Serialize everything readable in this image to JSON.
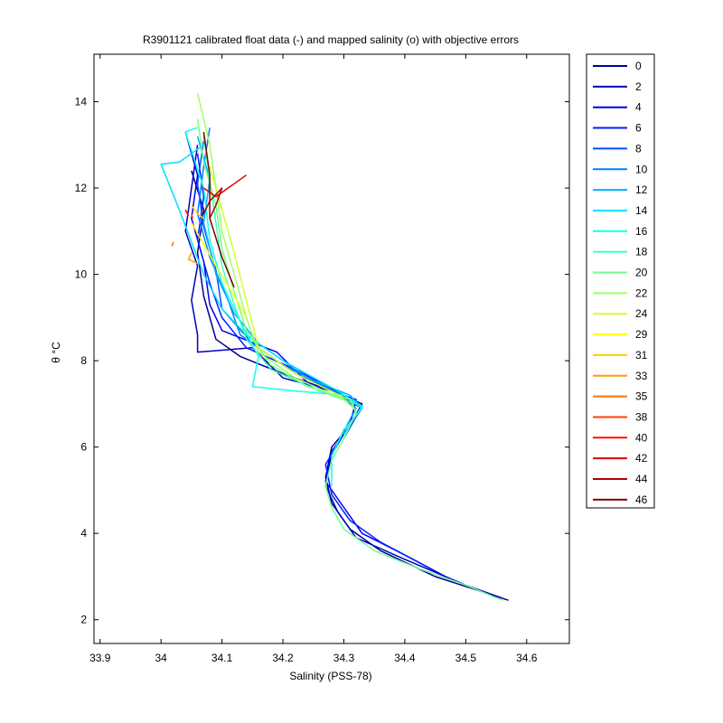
{
  "chart_data": {
    "type": "line",
    "title": "R3901121 calibrated float data (-) and mapped salinity (o) with objective errors",
    "xlabel": "Salinity (PSS-78)",
    "ylabel": "θ °C",
    "xlim": [
      33.89,
      34.67
    ],
    "ylim": [
      1.45,
      15.1
    ],
    "xticks": [
      33.9,
      34,
      34.1,
      34.2,
      34.3,
      34.4,
      34.5,
      34.6
    ],
    "xtick_labels": [
      "33.9",
      "34",
      "34.1",
      "34.2",
      "34.3",
      "34.4",
      "34.5",
      "34.6"
    ],
    "yticks": [
      2,
      4,
      6,
      8,
      10,
      12,
      14
    ],
    "ytick_labels": [
      "2",
      "4",
      "6",
      "8",
      "10",
      "12",
      "14"
    ],
    "grid": false,
    "legend_placement": "outside-right",
    "series": [
      {
        "name": "0",
        "color": "#00008f",
        "points": [
          [
            34.05,
            12.4
          ],
          [
            34.07,
            11.5
          ],
          [
            34.06,
            10.5
          ],
          [
            34.07,
            9.5
          ],
          [
            34.09,
            8.5
          ],
          [
            34.13,
            8.1
          ],
          [
            34.2,
            7.7
          ],
          [
            34.28,
            7.3
          ],
          [
            34.33,
            7.0
          ],
          [
            34.31,
            6.5
          ],
          [
            34.28,
            6.0
          ],
          [
            34.27,
            5.3
          ],
          [
            34.28,
            4.7
          ],
          [
            34.31,
            4.1
          ],
          [
            34.36,
            3.6
          ],
          [
            34.45,
            3.0
          ],
          [
            34.57,
            2.45
          ]
        ]
      },
      {
        "name": "2",
        "color": "#0000bf",
        "points": [
          [
            34.06,
            13.0
          ],
          [
            34.05,
            12.0
          ],
          [
            34.04,
            11.0
          ],
          [
            34.06,
            10.2
          ],
          [
            34.05,
            9.4
          ],
          [
            34.06,
            8.6
          ],
          [
            34.06,
            8.2
          ],
          [
            34.15,
            8.3
          ],
          [
            34.2,
            7.6
          ],
          [
            34.28,
            7.3
          ],
          [
            34.33,
            6.9
          ],
          [
            34.3,
            6.4
          ],
          [
            34.28,
            5.8
          ],
          [
            34.27,
            5.1
          ],
          [
            34.29,
            4.5
          ],
          [
            34.32,
            3.9
          ],
          [
            34.4,
            3.4
          ],
          [
            34.5,
            2.8
          ],
          [
            34.56,
            2.5
          ]
        ]
      },
      {
        "name": "4",
        "color": "#0000ef",
        "points": [
          [
            34.04,
            13.3
          ],
          [
            34.06,
            12.3
          ],
          [
            34.05,
            11.3
          ],
          [
            34.07,
            10.3
          ],
          [
            34.08,
            9.3
          ],
          [
            34.1,
            8.7
          ],
          [
            34.19,
            8.2
          ],
          [
            34.24,
            7.5
          ],
          [
            34.32,
            7.1
          ],
          [
            34.31,
            6.5
          ],
          [
            34.28,
            5.9
          ],
          [
            34.27,
            5.2
          ],
          [
            34.3,
            4.6
          ],
          [
            34.33,
            4.0
          ],
          [
            34.4,
            3.5
          ],
          [
            34.48,
            2.9
          ]
        ]
      },
      {
        "name": "6",
        "color": "#001fff",
        "points": [
          [
            34.06,
            12.8
          ],
          [
            34.07,
            11.8
          ],
          [
            34.06,
            10.8
          ],
          [
            34.08,
            9.8
          ],
          [
            34.1,
            9.0
          ],
          [
            34.14,
            8.3
          ],
          [
            34.22,
            7.8
          ],
          [
            34.3,
            7.2
          ],
          [
            34.33,
            6.9
          ],
          [
            34.3,
            6.3
          ],
          [
            34.27,
            5.6
          ],
          [
            34.28,
            4.9
          ],
          [
            34.31,
            4.3
          ],
          [
            34.36,
            3.8
          ],
          [
            34.44,
            3.2
          ]
        ]
      },
      {
        "name": "8",
        "color": "#004fff",
        "points": [
          [
            34.07,
            13.1
          ],
          [
            34.06,
            12.1
          ],
          [
            34.07,
            11.1
          ],
          [
            34.09,
            10.1
          ],
          [
            34.1,
            9.2
          ],
          [
            34.15,
            8.4
          ],
          [
            34.22,
            7.7
          ],
          [
            34.3,
            7.2
          ],
          [
            34.33,
            6.95
          ],
          [
            34.3,
            6.2
          ]
        ]
      },
      {
        "name": "10",
        "color": "#007fff",
        "points": [
          [
            34.08,
            13.4
          ],
          [
            34.07,
            12.5
          ],
          [
            34.06,
            11.4
          ],
          [
            34.08,
            10.4
          ],
          [
            34.11,
            9.4
          ],
          [
            34.13,
            8.6
          ],
          [
            34.2,
            7.9
          ],
          [
            34.29,
            7.25
          ],
          [
            34.32,
            6.9
          ],
          [
            34.29,
            6.1
          ]
        ]
      },
      {
        "name": "12",
        "color": "#00afff",
        "points": [
          [
            34.06,
            13.2
          ],
          [
            34.08,
            12.2
          ],
          [
            34.07,
            11.2
          ],
          [
            34.09,
            10.0
          ],
          [
            34.12,
            9.1
          ],
          [
            34.16,
            8.4
          ],
          [
            34.24,
            7.6
          ],
          [
            34.31,
            7.2
          ],
          [
            34.33,
            6.9
          ]
        ]
      },
      {
        "name": "14",
        "color": "#00dfff",
        "points": [
          [
            34.07,
            13.0
          ],
          [
            34.03,
            12.6
          ],
          [
            34.0,
            12.55
          ],
          [
            34.03,
            11.5
          ],
          [
            34.07,
            10.0
          ],
          [
            34.1,
            9.2
          ],
          [
            34.14,
            8.6
          ],
          [
            34.2,
            8.0
          ],
          [
            34.29,
            7.3
          ],
          [
            34.33,
            6.95
          ],
          [
            34.3,
            6.3
          ]
        ]
      },
      {
        "name": "16",
        "color": "#10ffef",
        "points": [
          [
            34.06,
            13.4
          ],
          [
            34.04,
            13.3
          ],
          [
            34.07,
            12.0
          ],
          [
            34.08,
            10.8
          ],
          [
            34.1,
            9.8
          ],
          [
            34.13,
            8.9
          ],
          [
            34.16,
            8.1
          ],
          [
            34.15,
            7.4
          ],
          [
            34.22,
            7.3
          ],
          [
            34.3,
            7.2
          ],
          [
            34.33,
            6.9
          ],
          [
            34.3,
            6.4
          ],
          [
            34.28,
            5.8
          ],
          [
            34.28,
            5.1
          ]
        ]
      },
      {
        "name": "18",
        "color": "#40ffbf",
        "points": [
          [
            34.07,
            13.2
          ],
          [
            34.08,
            12.2
          ],
          [
            34.09,
            11.2
          ],
          [
            34.1,
            10.2
          ],
          [
            34.12,
            9.3
          ],
          [
            34.14,
            8.5
          ],
          [
            34.18,
            7.8
          ],
          [
            34.26,
            7.3
          ],
          [
            34.32,
            7.0
          ]
        ]
      },
      {
        "name": "20",
        "color": "#70ff8f",
        "points": [
          [
            34.06,
            13.6
          ],
          [
            34.07,
            12.6
          ],
          [
            34.09,
            11.6
          ],
          [
            34.1,
            10.6
          ],
          [
            34.12,
            9.6
          ],
          [
            34.14,
            8.7
          ],
          [
            34.18,
            7.9
          ],
          [
            34.24,
            7.4
          ],
          [
            34.31,
            7.1
          ],
          [
            34.32,
            6.8
          ],
          [
            34.3,
            6.2
          ],
          [
            34.28,
            5.7
          ],
          [
            34.27,
            5.1
          ],
          [
            34.28,
            4.6
          ],
          [
            34.3,
            4.1
          ],
          [
            34.35,
            3.6
          ],
          [
            34.42,
            3.2
          ],
          [
            34.5,
            2.8
          ],
          [
            34.56,
            2.45
          ]
        ]
      },
      {
        "name": "22",
        "color": "#9fff5f",
        "points": [
          [
            34.06,
            14.2
          ],
          [
            34.08,
            13.0
          ],
          [
            34.09,
            12.0
          ],
          [
            34.1,
            11.0
          ],
          [
            34.12,
            10.0
          ],
          [
            34.14,
            9.0
          ],
          [
            34.16,
            8.2
          ],
          [
            34.22,
            7.6
          ],
          [
            34.3,
            7.1
          ],
          [
            34.32,
            6.85
          ]
        ]
      },
      {
        "name": "24",
        "color": "#cfff2f",
        "points": [
          [
            34.08,
            12.5
          ],
          [
            34.1,
            11.5
          ],
          [
            34.12,
            10.5
          ],
          [
            34.14,
            9.4
          ],
          [
            34.16,
            8.3
          ],
          [
            34.22,
            7.7
          ],
          [
            34.3,
            7.15
          ]
        ]
      },
      {
        "name": "29",
        "color": "#ffff00",
        "points": [
          [
            34.05,
            11.2
          ],
          [
            34.09,
            10.2
          ],
          [
            34.12,
            9.5
          ],
          [
            34.14,
            9.0
          ]
        ]
      },
      {
        "name": "31",
        "color": "#ffcf00",
        "points": [
          [
            34.05,
            11.6
          ],
          [
            34.06,
            11.4
          ],
          [
            34.07,
            11.3
          ]
        ]
      },
      {
        "name": "33",
        "color": "#ff9f00",
        "points": [
          [
            34.05,
            10.5
          ],
          [
            34.045,
            10.35
          ],
          [
            34.06,
            10.25
          ]
        ]
      },
      {
        "name": "35",
        "color": "#ff6f00",
        "points": [
          [
            34.02,
            10.75
          ],
          [
            34.018,
            10.65
          ]
        ]
      },
      {
        "name": "38",
        "color": "#ff3f00",
        "points": [
          [
            34.05,
            11.4
          ],
          [
            34.052,
            11.3
          ]
        ]
      },
      {
        "name": "40",
        "color": "#ff0f00",
        "points": [
          [
            34.04,
            11.5
          ],
          [
            34.045,
            11.35
          ]
        ]
      },
      {
        "name": "42",
        "color": "#df0000",
        "points": [
          [
            34.07,
            12.0
          ],
          [
            34.09,
            11.8
          ],
          [
            34.12,
            12.1
          ],
          [
            34.14,
            12.3
          ]
        ]
      },
      {
        "name": "44",
        "color": "#af0000",
        "points": [
          [
            34.07,
            11.4
          ],
          [
            34.08,
            11.7
          ],
          [
            34.1,
            12.0
          ],
          [
            34.09,
            11.6
          ],
          [
            34.08,
            11.3
          ]
        ]
      },
      {
        "name": "46",
        "color": "#7f0000",
        "points": [
          [
            34.07,
            13.3
          ],
          [
            34.08,
            12.3
          ],
          [
            34.08,
            11.3
          ],
          [
            34.1,
            10.4
          ],
          [
            34.12,
            9.7
          ]
        ]
      }
    ]
  }
}
